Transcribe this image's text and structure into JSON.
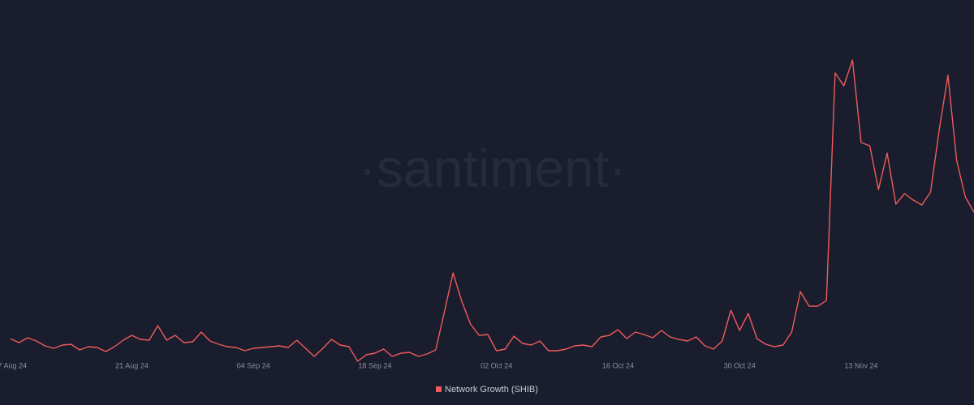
{
  "chart_data": {
    "type": "line",
    "watermark": "·santiment·",
    "x": [
      "2024-08-07",
      "2024-08-08",
      "2024-08-09",
      "2024-08-10",
      "2024-08-11",
      "2024-08-12",
      "2024-08-13",
      "2024-08-14",
      "2024-08-15",
      "2024-08-16",
      "2024-08-17",
      "2024-08-18",
      "2024-08-19",
      "2024-08-20",
      "2024-08-21",
      "2024-08-22",
      "2024-08-23",
      "2024-08-24",
      "2024-08-25",
      "2024-08-26",
      "2024-08-27",
      "2024-08-28",
      "2024-08-29",
      "2024-08-30",
      "2024-08-31",
      "2024-09-01",
      "2024-09-02",
      "2024-09-03",
      "2024-09-04",
      "2024-09-05",
      "2024-09-06",
      "2024-09-07",
      "2024-09-08",
      "2024-09-09",
      "2024-09-10",
      "2024-09-11",
      "2024-09-12",
      "2024-09-13",
      "2024-09-14",
      "2024-09-15",
      "2024-09-16",
      "2024-09-17",
      "2024-09-18",
      "2024-09-19",
      "2024-09-20",
      "2024-09-21",
      "2024-09-22",
      "2024-09-23",
      "2024-09-24",
      "2024-09-25",
      "2024-09-26",
      "2024-09-27",
      "2024-09-28",
      "2024-09-29",
      "2024-09-30",
      "2024-10-01",
      "2024-10-02",
      "2024-10-03",
      "2024-10-04",
      "2024-10-05",
      "2024-10-06",
      "2024-10-07",
      "2024-10-08",
      "2024-10-09",
      "2024-10-10",
      "2024-10-11",
      "2024-10-12",
      "2024-10-13",
      "2024-10-14",
      "2024-10-15",
      "2024-10-16",
      "2024-10-17",
      "2024-10-18",
      "2024-10-19",
      "2024-10-20",
      "2024-10-21",
      "2024-10-22",
      "2024-10-23",
      "2024-10-24",
      "2024-10-25",
      "2024-10-26",
      "2024-10-27",
      "2024-10-28",
      "2024-10-29",
      "2024-10-30",
      "2024-10-31",
      "2024-11-01",
      "2024-11-02",
      "2024-11-03",
      "2024-11-04",
      "2024-11-05",
      "2024-11-06",
      "2024-11-07",
      "2024-11-08",
      "2024-11-09",
      "2024-11-10",
      "2024-11-11",
      "2024-11-12",
      "2024-11-13",
      "2024-11-14",
      "2024-11-15",
      "2024-11-16",
      "2024-11-17",
      "2024-11-18",
      "2024-11-19",
      "2024-11-20",
      "2024-11-21",
      "2024-11-22",
      "2024-11-23",
      "2024-11-24",
      "2024-11-25",
      "2024-11-26"
    ],
    "series": [
      {
        "name": "Network Growth (SHIB)",
        "color": "#ef5b5b",
        "values": [
          29,
          24,
          30,
          26,
          20,
          17,
          21,
          22,
          15,
          19,
          18,
          13,
          19,
          27,
          33,
          28,
          27,
          45,
          27,
          33,
          24,
          25,
          37,
          26,
          22,
          19,
          18,
          14,
          17,
          18,
          19,
          20,
          18,
          27,
          17,
          7,
          17,
          28,
          21,
          19,
          1,
          9,
          11,
          16,
          7,
          11,
          12,
          7,
          10,
          15,
          62,
          110,
          75,
          47,
          33,
          34,
          14,
          16,
          32,
          23,
          21,
          26,
          14,
          14,
          16,
          20,
          21,
          19,
          31,
          33,
          40,
          29,
          37,
          34,
          30,
          39,
          31,
          28,
          26,
          31,
          20,
          16,
          26,
          64,
          39,
          60,
          29,
          22,
          19,
          21,
          37,
          87,
          69,
          69,
          76,
          357,
          341,
          373,
          271,
          267,
          213,
          258,
          195,
          208,
          200,
          194,
          210,
          287,
          354,
          249,
          204,
          185
        ]
      }
    ],
    "xlim": [
      "2024-08-06",
      "2024-11-26"
    ],
    "xticks": [
      {
        "value": "2024-08-07",
        "label": "07 Aug 24"
      },
      {
        "value": "2024-08-21",
        "label": "21 Aug 24"
      },
      {
        "value": "2024-09-04",
        "label": "04 Sep 24"
      },
      {
        "value": "2024-09-18",
        "label": "18 Sep 24"
      },
      {
        "value": "2024-10-02",
        "label": "02 Oct 24"
      },
      {
        "value": "2024-10-16",
        "label": "16 Oct 24"
      },
      {
        "value": "2024-10-30",
        "label": "30 Oct 24"
      },
      {
        "value": "2024-11-13",
        "label": "13 Nov 24"
      }
    ],
    "ylim": [
      0,
      400
    ]
  }
}
